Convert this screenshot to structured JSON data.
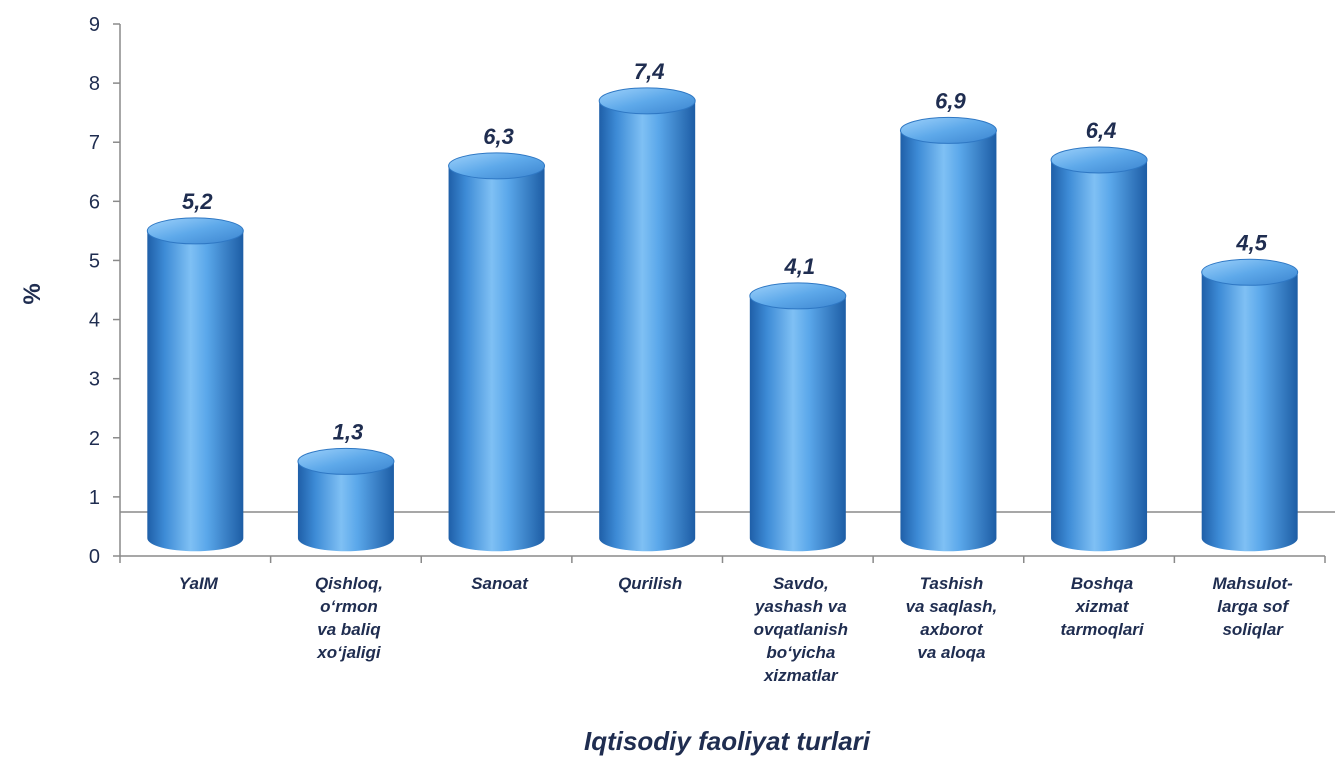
{
  "chart_data": {
    "type": "bar",
    "title": "",
    "xlabel": "Iqtisodiy faoliyat turlari",
    "ylabel": "%",
    "ylim": [
      0,
      9
    ],
    "yticks": [
      0,
      1,
      2,
      3,
      4,
      5,
      6,
      7,
      8,
      9
    ],
    "grid": false,
    "style": "3d-cylinder",
    "bar_color": "#4a9be0",
    "text_color": "#1f2d50",
    "categories": [
      [
        "YaIM"
      ],
      [
        "Qishloq,",
        "o‘rmon",
        "va baliq",
        "xo‘jaligi"
      ],
      [
        "Sanoat"
      ],
      [
        "Qurilish"
      ],
      [
        "Savdo,",
        "yashash va",
        "ovqatlanish",
        "bo‘yicha",
        "xizmatlar"
      ],
      [
        "Tashish",
        "va saqlash,",
        "axborot",
        "va aloqa"
      ],
      [
        "Boshqa",
        "xizmat",
        "tarmoqlari"
      ],
      [
        "Mahsulot-",
        "larga sof",
        "soliqlar"
      ]
    ],
    "values": [
      5.2,
      1.3,
      6.3,
      7.4,
      4.1,
      6.9,
      6.4,
      4.5
    ],
    "value_labels": [
      "5,2",
      "1,3",
      "6,3",
      "7,4",
      "4,1",
      "6,9",
      "6,4",
      "4,5"
    ]
  }
}
